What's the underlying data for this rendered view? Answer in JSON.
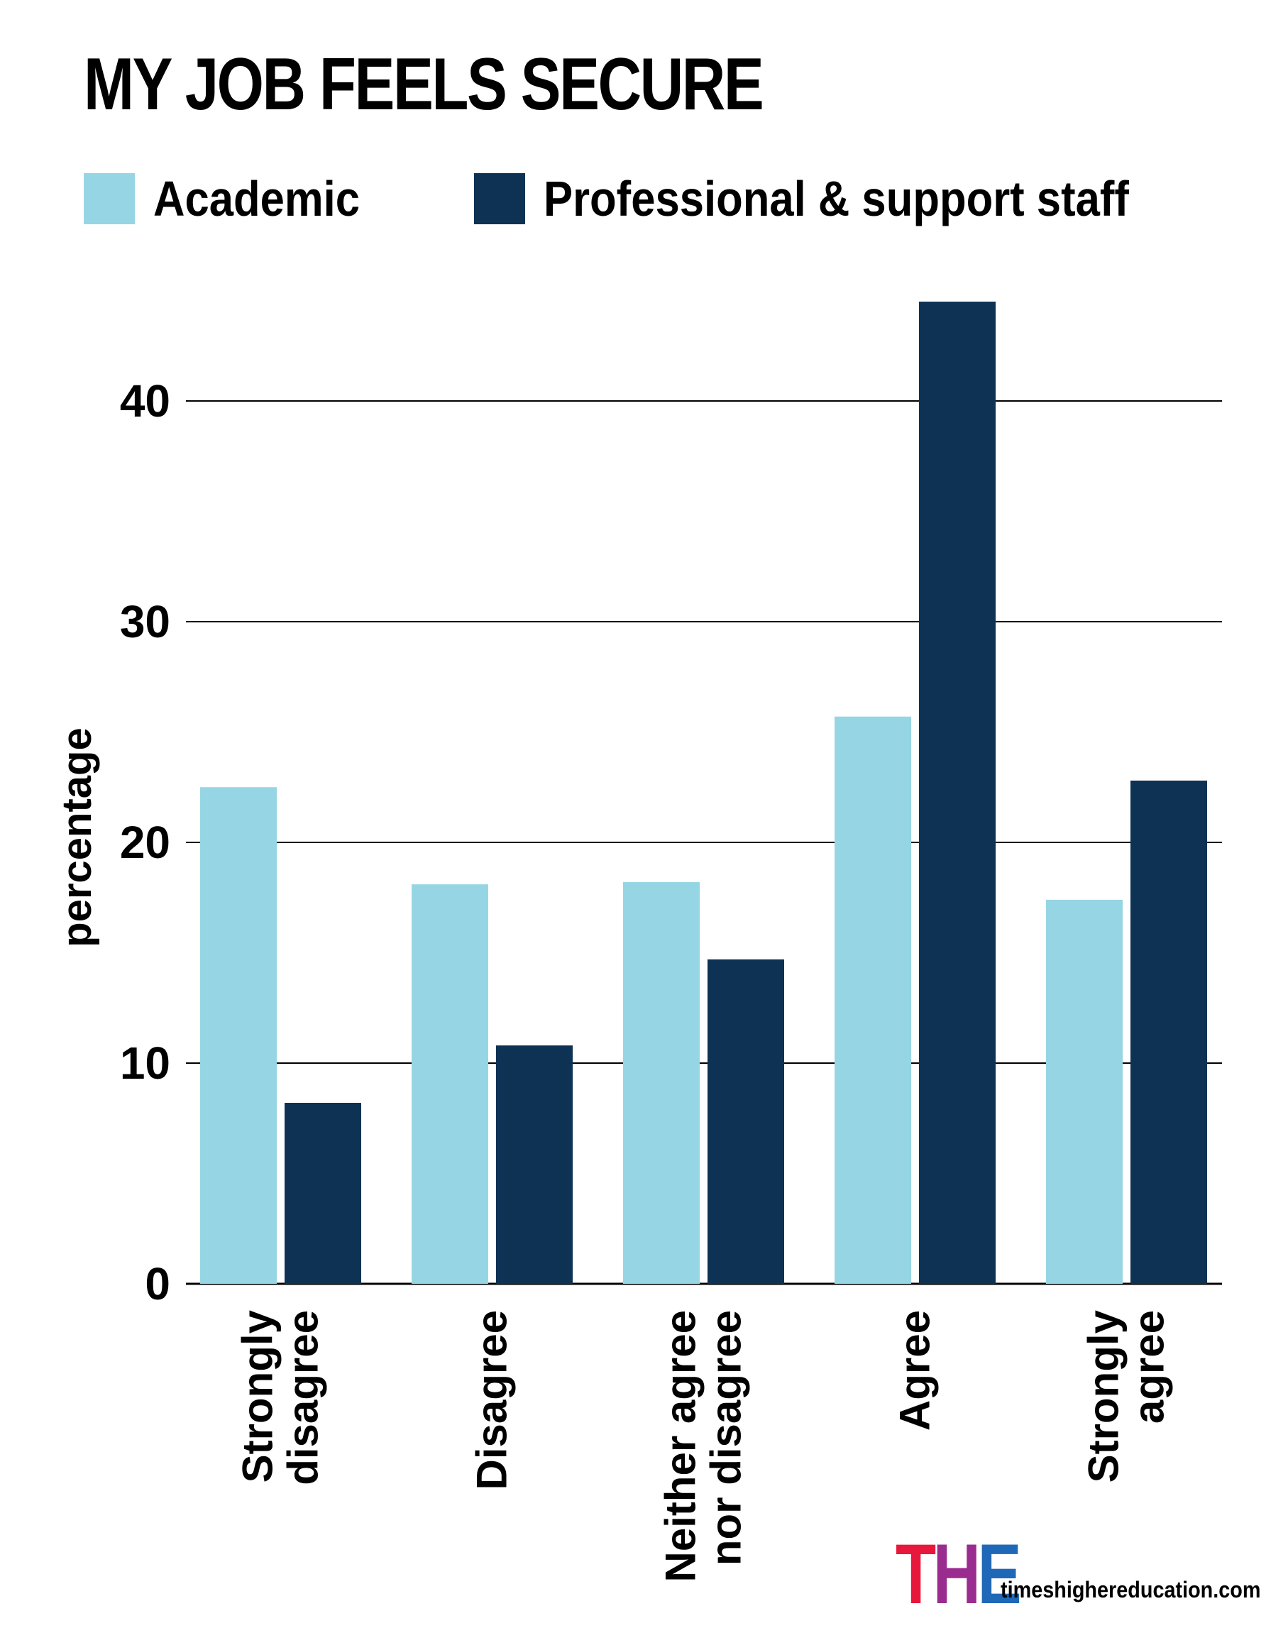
{
  "chart_data": {
    "type": "bar",
    "title": "MY JOB FEELS SECURE",
    "ylabel": "percentage",
    "xlabel": "",
    "ylim": [
      0,
      46
    ],
    "yticks": [
      0,
      10,
      20,
      30,
      40
    ],
    "grid": true,
    "legend_position": "top-left",
    "categories": [
      [
        "Strongly",
        "disagree"
      ],
      [
        "Disagree"
      ],
      [
        "Neither agree",
        "nor disagree"
      ],
      [
        "Agree"
      ],
      [
        "Strongly",
        "agree"
      ]
    ],
    "series": [
      {
        "name": "Academic",
        "color": "#96d6e4",
        "values": [
          22.5,
          18.1,
          18.2,
          25.7,
          17.4
        ]
      },
      {
        "name": "Professional & support staff",
        "color": "#0d3254",
        "values": [
          8.2,
          10.8,
          14.7,
          44.5,
          22.8
        ]
      }
    ]
  },
  "branding": {
    "logo_letters": [
      {
        "text": "T",
        "color": "#e8173c"
      },
      {
        "text": "H",
        "color": "#9b2c8f"
      },
      {
        "text": "E",
        "color": "#1f68b7"
      }
    ],
    "url": "timeshighereducation.com"
  }
}
